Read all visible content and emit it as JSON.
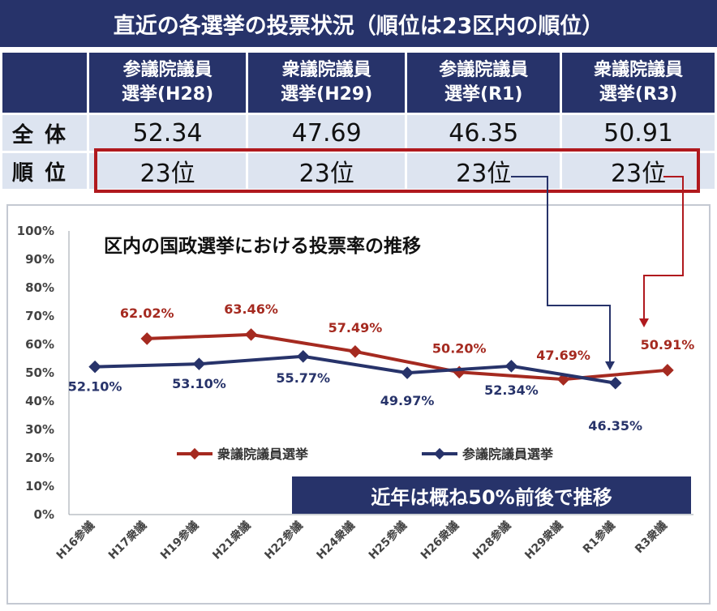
{
  "banner": {
    "title": "直近の各選挙の投票状況（順位は23区内の順位）"
  },
  "summary_table": {
    "columns": [
      {
        "line1": "参議院議員",
        "line2": "選挙(H28)"
      },
      {
        "line1": "衆議院議員",
        "line2": "選挙(H29)"
      },
      {
        "line1": "参議院議員",
        "line2": "選挙(R1)"
      },
      {
        "line1": "衆議院議員",
        "line2": "選挙(R3)"
      }
    ],
    "rows": [
      {
        "label": "全体",
        "values": [
          "52.34",
          "47.69",
          "46.35",
          "50.91"
        ]
      },
      {
        "label": "順位",
        "values": [
          "23位",
          "23位",
          "23位",
          "23位"
        ]
      }
    ]
  },
  "note": "近年は概ね50%前後で推移",
  "colors": {
    "navy": "#27336a",
    "red": "#b0191e",
    "shuugiin": "#a52a20",
    "sangiin": "#27336a"
  },
  "chart_data": {
    "type": "line",
    "title": "区内の国政選挙における投票率の推移",
    "categories": [
      "H16参議",
      "H17衆議",
      "H19参議",
      "H21衆議",
      "H22参議",
      "H24衆議",
      "H25参議",
      "H26衆議",
      "H28参議",
      "H29衆議",
      "R1参議",
      "R3衆議"
    ],
    "ylim": [
      0,
      100
    ],
    "yticks": [
      "0%",
      "10%",
      "20%",
      "30%",
      "40%",
      "50%",
      "60%",
      "70%",
      "80%",
      "90%",
      "100%"
    ],
    "grid": false,
    "legend": "bottom",
    "series": [
      {
        "name": "衆議院議員選挙",
        "color": "#a52a20",
        "points": [
          {
            "x": "H17衆議",
            "y": 62.02,
            "label": "62.02%"
          },
          {
            "x": "H21衆議",
            "y": 63.46,
            "label": "63.46%"
          },
          {
            "x": "H24衆議",
            "y": 57.49,
            "label": "57.49%"
          },
          {
            "x": "H26衆議",
            "y": 50.2,
            "label": "50.20%"
          },
          {
            "x": "H29衆議",
            "y": 47.69,
            "label": "47.69%"
          },
          {
            "x": "R3衆議",
            "y": 50.91,
            "label": "50.91%"
          }
        ]
      },
      {
        "name": "参議院議員選挙",
        "color": "#27336a",
        "points": [
          {
            "x": "H16参議",
            "y": 52.1,
            "label": "52.10%"
          },
          {
            "x": "H19参議",
            "y": 53.1,
            "label": "53.10%"
          },
          {
            "x": "H22参議",
            "y": 55.77,
            "label": "55.77%"
          },
          {
            "x": "H25参議",
            "y": 49.97,
            "label": "49.97%"
          },
          {
            "x": "H28参議",
            "y": 52.34,
            "label": "52.34%"
          },
          {
            "x": "R1参議",
            "y": 46.35,
            "label": "46.35%"
          }
        ]
      }
    ]
  }
}
